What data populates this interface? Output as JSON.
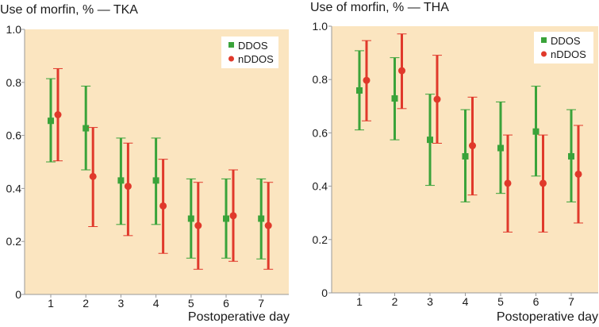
{
  "chart_data": [
    {
      "type": "scatter",
      "title": "Use of morfin, % — TKA",
      "xlabel": "Postoperative day",
      "ylabel": "",
      "categories": [
        "1",
        "2",
        "3",
        "4",
        "5",
        "6",
        "7"
      ],
      "ylim": [
        0,
        1.0
      ],
      "yticks": [
        "0",
        "0.2",
        "0.4",
        "0.6",
        "0.8",
        "1.0"
      ],
      "grid": false,
      "legend": "top-right",
      "background": "#fbe5c0",
      "series": [
        {
          "name": "DDOS",
          "marker": "square",
          "color": "#3aa33a",
          "values": [
            0.655,
            0.627,
            0.43,
            0.43,
            0.286,
            0.286,
            0.286
          ],
          "lower": [
            0.5,
            0.47,
            0.264,
            0.264,
            0.137,
            0.137,
            0.134
          ],
          "upper": [
            0.814,
            0.786,
            0.59,
            0.59,
            0.436,
            0.436,
            0.436
          ]
        },
        {
          "name": "nDDOS",
          "marker": "circle",
          "color": "#e0392b",
          "values": [
            0.678,
            0.445,
            0.408,
            0.334,
            0.26,
            0.297,
            0.26
          ],
          "lower": [
            0.504,
            0.256,
            0.222,
            0.155,
            0.095,
            0.125,
            0.095
          ],
          "upper": [
            0.852,
            0.63,
            0.571,
            0.51,
            0.423,
            0.47,
            0.423
          ]
        }
      ]
    },
    {
      "type": "scatter",
      "title": "Use of morfin, % — THA",
      "xlabel": "Postoperative day",
      "ylabel": "",
      "categories": [
        "1",
        "2",
        "3",
        "4",
        "5",
        "6",
        "7"
      ],
      "ylim": [
        0,
        1.0
      ],
      "yticks": [
        "0",
        "0.2",
        "0.4",
        "0.6",
        "0.8",
        "1.0"
      ],
      "grid": false,
      "legend": "top-right",
      "background": "#fbe5c0",
      "series": [
        {
          "name": "DDOS",
          "marker": "square",
          "color": "#3aa33a",
          "values": [
            0.759,
            0.729,
            0.574,
            0.512,
            0.543,
            0.605,
            0.512
          ],
          "lower": [
            0.611,
            0.574,
            0.403,
            0.341,
            0.373,
            0.438,
            0.341
          ],
          "upper": [
            0.908,
            0.882,
            0.745,
            0.687,
            0.716,
            0.775,
            0.687
          ]
        },
        {
          "name": "nDDOS",
          "marker": "circle",
          "color": "#e0392b",
          "values": [
            0.797,
            0.833,
            0.726,
            0.552,
            0.411,
            0.411,
            0.445
          ],
          "lower": [
            0.645,
            0.691,
            0.561,
            0.367,
            0.228,
            0.228,
            0.262
          ],
          "upper": [
            0.946,
            0.971,
            0.891,
            0.734,
            0.592,
            0.592,
            0.628
          ]
        }
      ]
    }
  ]
}
